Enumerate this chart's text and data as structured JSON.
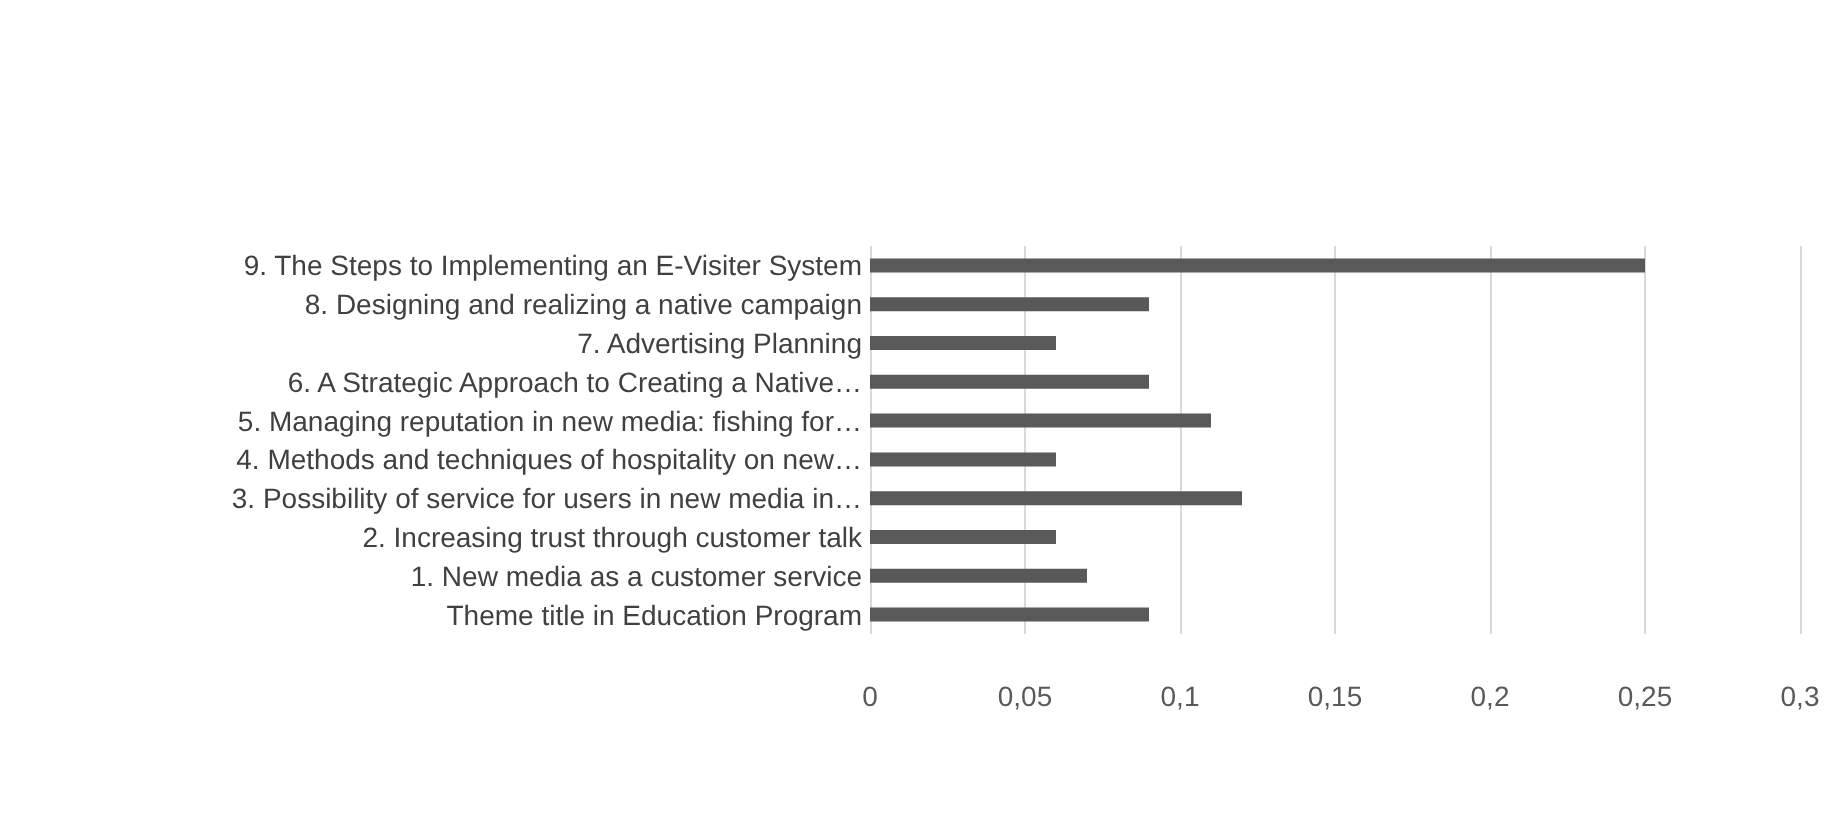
{
  "chart_data": {
    "type": "bar",
    "orientation": "horizontal",
    "categories": [
      "9. The Steps to Implementing an E-Visiter System",
      "8. Designing and realizing a native campaign",
      "7. Advertising Planning",
      "6. A Strategic Approach to Creating a Native…",
      "5. Managing reputation in new media: fishing for…",
      "4. Methods and techniques of hospitality on new…",
      "3. Possibility of service for users in new media in…",
      "2. Increasing trust through customer talk",
      "1. New media as a customer service",
      "Theme title in Education Program"
    ],
    "values": [
      0.25,
      0.09,
      0.06,
      0.09,
      0.11,
      0.06,
      0.12,
      0.06,
      0.07,
      0.09
    ],
    "color": "#595959",
    "xlim": [
      0,
      0.3
    ],
    "xticks": [
      {
        "value": 0,
        "label": "0"
      },
      {
        "value": 0.05,
        "label": "0,05"
      },
      {
        "value": 0.1,
        "label": "0,1"
      },
      {
        "value": 0.15,
        "label": "0,15"
      },
      {
        "value": 0.2,
        "label": "0,2"
      },
      {
        "value": 0.25,
        "label": "0,25"
      },
      {
        "value": 0.3,
        "label": "0,3"
      }
    ],
    "grid": "x"
  }
}
